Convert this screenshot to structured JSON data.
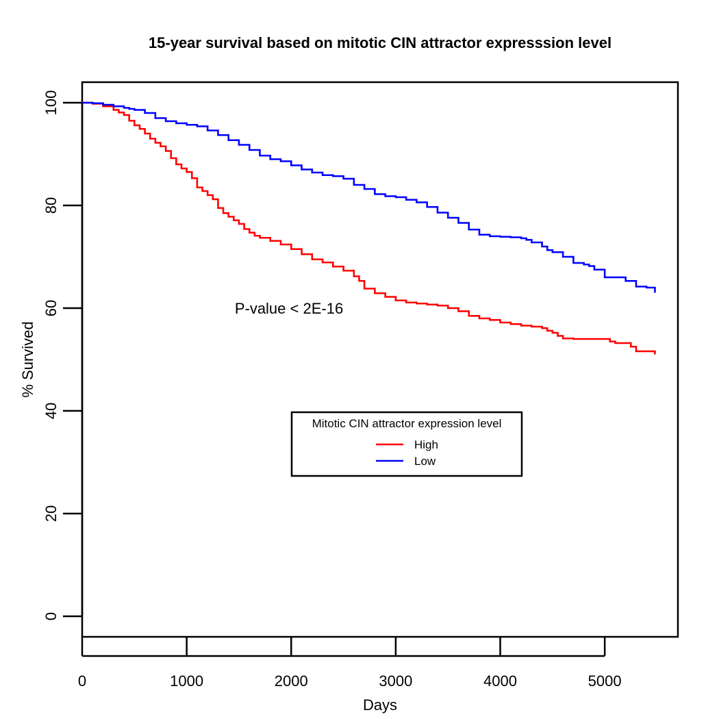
{
  "chart_data": {
    "type": "line",
    "subtype": "kaplan-meier step",
    "title": "15-year survival based on mitotic CIN attractor expresssion level",
    "xlabel": "Days",
    "ylabel": "% Survived",
    "xlim": [
      0,
      5700
    ],
    "ylim": [
      -4,
      104
    ],
    "xticks": [
      0,
      1000,
      2000,
      3000,
      4000,
      5000
    ],
    "yticks": [
      0,
      20,
      40,
      60,
      80,
      100
    ],
    "xtick_labels": [
      "0",
      "1000",
      "2000",
      "3000",
      "4000",
      "5000"
    ],
    "ytick_labels": [
      "0",
      "20",
      "40",
      "60",
      "80",
      "100"
    ],
    "grid": false,
    "annotation": "P-value < 2E-16",
    "legend": {
      "title": "Mitotic CIN attractor expression level",
      "placement": "center-right",
      "entries": [
        "High",
        "Low"
      ]
    },
    "series": [
      {
        "name": "High",
        "color": "#ff0000",
        "x": [
          0,
          100,
          200,
          300,
          350,
          400,
          450,
          500,
          550,
          600,
          650,
          700,
          750,
          800,
          850,
          900,
          950,
          1000,
          1050,
          1100,
          1150,
          1200,
          1250,
          1300,
          1350,
          1400,
          1450,
          1500,
          1550,
          1600,
          1650,
          1700,
          1800,
          1900,
          2000,
          2100,
          2200,
          2300,
          2400,
          2500,
          2600,
          2650,
          2700,
          2800,
          2900,
          3000,
          3100,
          3200,
          3300,
          3400,
          3500,
          3600,
          3700,
          3800,
          3900,
          4000,
          4100,
          4200,
          4300,
          4400,
          4450,
          4500,
          4550,
          4600,
          4700,
          4800,
          4900,
          5000,
          5050,
          5100,
          5200,
          5250,
          5300,
          5400,
          5450,
          5480
        ],
        "y": [
          100,
          99.8,
          99.3,
          98.6,
          98.1,
          97.6,
          96.5,
          95.6,
          94.9,
          94.0,
          93.0,
          92.2,
          91.5,
          90.6,
          89.2,
          88.0,
          87.2,
          86.5,
          85.3,
          83.5,
          82.8,
          82.0,
          81.2,
          79.5,
          78.5,
          77.8,
          77.1,
          76.4,
          75.4,
          74.7,
          74.1,
          73.7,
          73.1,
          72.4,
          71.5,
          70.5,
          69.5,
          68.9,
          68.1,
          67.3,
          66.2,
          65.3,
          63.8,
          62.9,
          62.2,
          61.5,
          61.1,
          60.9,
          60.7,
          60.5,
          60.0,
          59.4,
          58.5,
          58.0,
          57.7,
          57.2,
          56.9,
          56.6,
          56.4,
          56.1,
          55.6,
          55.2,
          54.6,
          54.1,
          54.0,
          54.0,
          54.0,
          54.0,
          53.5,
          53.2,
          53.2,
          52.5,
          51.6,
          51.6,
          51.6,
          51.0
        ]
      },
      {
        "name": "Low",
        "color": "#0000ff",
        "x": [
          0,
          100,
          200,
          300,
          400,
          450,
          500,
          600,
          700,
          800,
          900,
          1000,
          1100,
          1200,
          1300,
          1400,
          1500,
          1600,
          1700,
          1800,
          1900,
          2000,
          2100,
          2200,
          2300,
          2400,
          2500,
          2600,
          2700,
          2800,
          2900,
          3000,
          3100,
          3200,
          3300,
          3400,
          3500,
          3600,
          3700,
          3800,
          3900,
          4000,
          4100,
          4200,
          4250,
          4300,
          4400,
          4450,
          4500,
          4600,
          4700,
          4800,
          4850,
          4900,
          5000,
          5100,
          5200,
          5300,
          5400,
          5480
        ],
        "y": [
          100,
          99.9,
          99.6,
          99.3,
          99.0,
          98.8,
          98.6,
          98.0,
          97.0,
          96.4,
          96.0,
          95.7,
          95.4,
          94.6,
          93.7,
          92.7,
          91.8,
          90.8,
          89.7,
          89.0,
          88.6,
          87.8,
          87.0,
          86.4,
          85.9,
          85.7,
          85.2,
          84.0,
          83.2,
          82.2,
          81.8,
          81.6,
          81.1,
          80.6,
          79.7,
          78.6,
          77.6,
          76.6,
          75.3,
          74.3,
          74.0,
          73.9,
          73.8,
          73.6,
          73.3,
          72.8,
          72.0,
          71.3,
          70.9,
          70.0,
          68.8,
          68.5,
          68.2,
          67.5,
          66.0,
          66.0,
          65.3,
          64.2,
          64.0,
          63.0
        ]
      }
    ]
  }
}
